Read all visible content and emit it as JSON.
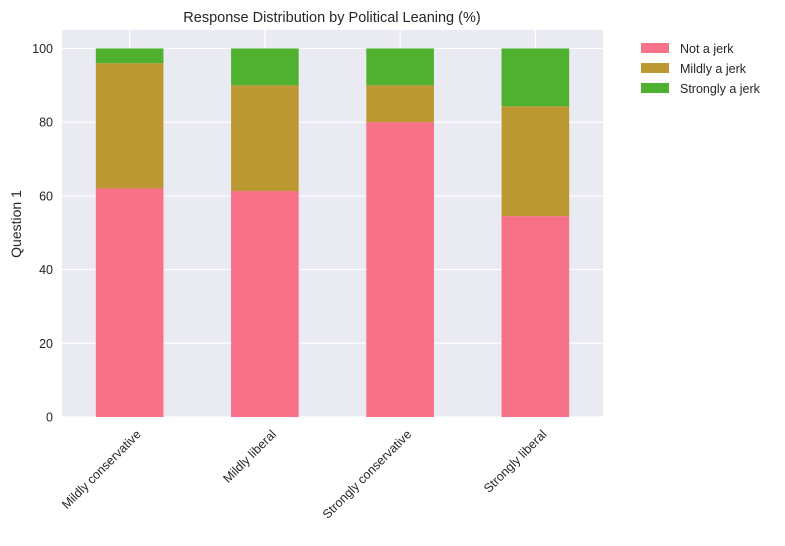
{
  "chart_data": {
    "type": "bar",
    "stacked": true,
    "title": "Response Distribution by Political Leaning (%)",
    "xlabel": "",
    "ylabel": "Question 1",
    "ylim": [
      0,
      105
    ],
    "yticks": [
      0,
      20,
      40,
      60,
      80,
      100
    ],
    "grid": true,
    "legend_position": "outside-top-right",
    "categories": [
      "Mildly conservative",
      "Mildly liberal",
      "Strongly conservative",
      "Strongly liberal"
    ],
    "series": [
      {
        "name": "Not a jerk",
        "color": "#f77189",
        "values": [
          62,
          61.3,
          80,
          54.5
        ]
      },
      {
        "name": "Mildly a jerk",
        "color": "#bb9832",
        "values": [
          34,
          28.7,
          10,
          29.8
        ]
      },
      {
        "name": "Strongly a jerk",
        "color": "#50b131",
        "values": [
          4,
          10,
          10,
          15.7
        ]
      }
    ]
  }
}
